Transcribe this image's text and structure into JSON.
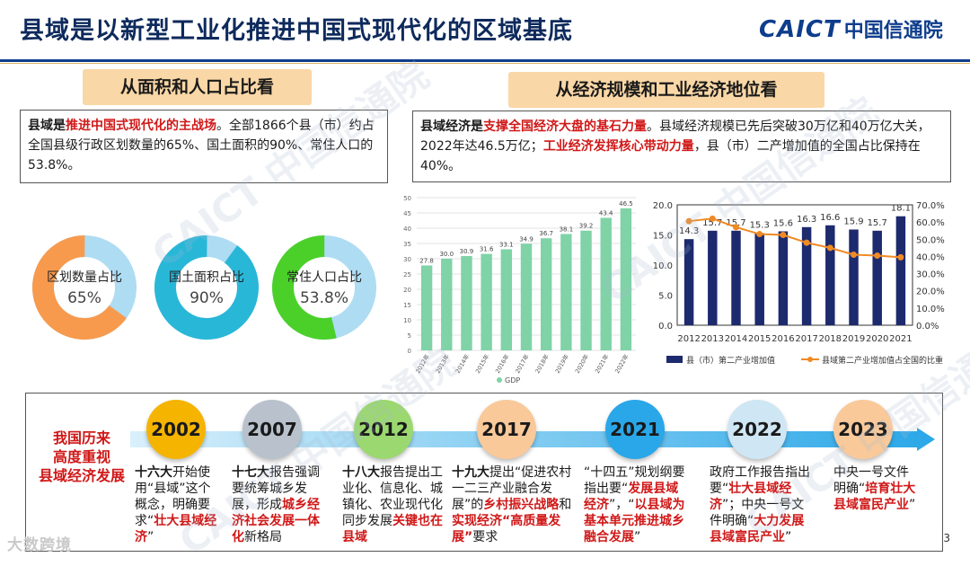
{
  "header": {
    "title": "县域是以新型工业化推进中国式现代化的区域基底",
    "logo_en": "CAICT",
    "logo_cn": "中国信通院"
  },
  "left": {
    "pill": "从面积和人口占比看",
    "text": {
      "p1": "县域是",
      "p2": "推进中国式现代化的主战场",
      "p3": "。全部1866个县（市）约占全国县级行政区划数量的65%、国土面积的90%、常住人口的53.8%。"
    },
    "donuts": [
      {
        "label": "区划数量占比",
        "value": "65%",
        "pct": 65,
        "color": "#f79a4d"
      },
      {
        "label": "国土面积占比",
        "value": "90%",
        "pct": 90,
        "color": "#29b7d8"
      },
      {
        "label": "常住人口占比",
        "value": "53.8%",
        "pct": 53.8,
        "color": "#4bd02a"
      }
    ],
    "donut_rest_color": "#aedcf3"
  },
  "right": {
    "pill": "从经济规模和工业经济地位看",
    "text": {
      "p1": "县域经济是",
      "p2": "支撑全国经济大盘的基石力量",
      "p3": "。县域经济规模已先后突破30万亿和40万亿大关，2022年达46.5万亿；",
      "p4": "工业经济发挥核心带动力量",
      "p5": "，县（市）二产增加值的全国占比保持在40%。"
    }
  },
  "chart_data": [
    {
      "type": "bar",
      "title": "",
      "categories": [
        "2012年",
        "2013年",
        "2014年",
        "2015年",
        "2016年",
        "2017年",
        "2018年",
        "2019年",
        "2020年",
        "2021年",
        "2022年"
      ],
      "values": [
        27.8,
        30.0,
        30.9,
        31.6,
        33.1,
        34.9,
        36.7,
        38.1,
        39.2,
        43.4,
        46.5
      ],
      "value_labels": [
        "27.8",
        "30.0",
        "30.9",
        "31.6",
        "33.1",
        "34.9",
        "36.7",
        "38.1",
        "39.2",
        "43.4",
        "46.5"
      ],
      "ylim": [
        0,
        50
      ],
      "yticks": [
        "0",
        "5",
        "10",
        "15",
        "20",
        "25",
        "30",
        "35",
        "40",
        "45",
        "50"
      ],
      "legend": "GDP",
      "color": "#7fd3a7"
    },
    {
      "type": "bar+line",
      "categories": [
        "2012",
        "2013",
        "2014",
        "2015",
        "2016",
        "2017",
        "2018",
        "2019",
        "2020",
        "2021"
      ],
      "series": [
        {
          "name": "县（市）第二产业增加值",
          "type": "bar",
          "values": [
            14.3,
            15.7,
            15.7,
            15.3,
            15.6,
            16.3,
            16.6,
            15.9,
            15.7,
            18.1
          ],
          "labels": [
            "14.3",
            "15.7",
            "15.7",
            "15.3",
            "15.6",
            "16.3",
            "16.6",
            "15.9",
            "15.7",
            "18.1"
          ],
          "color": "#1d2a6e",
          "axis": "left"
        },
        {
          "name": "县域第二产业增加值占全国的比重",
          "type": "line",
          "values": [
            60.5,
            62.0,
            57.0,
            53.0,
            52.5,
            48.0,
            45.0,
            41.0,
            40.5,
            39.5
          ],
          "color": "#f08a24",
          "axis": "right"
        }
      ],
      "ylim_left": [
        0,
        20
      ],
      "yticks_left": [
        "0.0",
        "5.0",
        "10.0",
        "15.0",
        "20.0"
      ],
      "ylim_right": [
        0,
        70
      ],
      "yticks_right": [
        "0.0%",
        "10.0%",
        "20.0%",
        "30.0%",
        "40.0%",
        "50.0%",
        "60.0%",
        "70.0%"
      ]
    }
  ],
  "timeline": {
    "left_label": [
      "我国历来",
      "高度重视",
      "县域经济发展"
    ],
    "items": [
      {
        "year": "2002",
        "desc": [
          [
            "s",
            "十六大"
          ],
          [
            "n",
            "开始使用“县域”这个概念，明确要求“"
          ],
          [
            "r",
            "壮大县域经济"
          ],
          [
            "n",
            "”"
          ]
        ]
      },
      {
        "year": "2007",
        "desc": [
          [
            "s",
            "十七大"
          ],
          [
            "n",
            "报告强调要统筹城乡发展，形成"
          ],
          [
            "r",
            "城乡经济社会发展一体化"
          ],
          [
            "n",
            "新格局"
          ]
        ]
      },
      {
        "year": "2012",
        "desc": [
          [
            "s",
            "十八大"
          ],
          [
            "n",
            "报告提出工业化、信息化、城镇化、农业现代化同步发展"
          ],
          [
            "r",
            "关键也在县域"
          ]
        ]
      },
      {
        "year": "2017",
        "desc": [
          [
            "s",
            "十九大"
          ],
          [
            "n",
            "提出“促进农村一二三产业融合发展”的"
          ],
          [
            "r",
            "乡村振兴战略"
          ],
          [
            "n",
            "和"
          ],
          [
            "r",
            "实现经济“高质量发展”"
          ],
          [
            "n",
            "要求"
          ]
        ]
      },
      {
        "year": "2021",
        "desc": [
          [
            "n",
            "“十四五”规划纲要指出要“"
          ],
          [
            "r",
            "发展县域经济"
          ],
          [
            "n",
            "”，“"
          ],
          [
            "r",
            "以县域为基本单元推进城乡融合发展"
          ],
          [
            "n",
            "”"
          ]
        ]
      },
      {
        "year": "2022",
        "desc": [
          [
            "n",
            "政府工作报告指出要“"
          ],
          [
            "r",
            "壮大县域经济"
          ],
          [
            "n",
            "”；中央一号文件明确“"
          ],
          [
            "r",
            "大力发展县域富民产业"
          ],
          [
            "n",
            "”"
          ]
        ]
      },
      {
        "year": "2023",
        "desc": [
          [
            "n",
            "中央一号文件明确“"
          ],
          [
            "r",
            "培育壮大县域富民产业"
          ],
          [
            "n",
            "”"
          ]
        ]
      }
    ],
    "year_colors": [
      "#f5b400",
      "#b9c2cc",
      "#9bd870",
      "#f9c99a",
      "#2aa7e8",
      "#cfe6f4",
      "#f9c99a"
    ]
  },
  "footer": {
    "page": "3",
    "watermark": "大数跨境"
  },
  "watermarks": [
    "CAICT 中国信通院"
  ]
}
